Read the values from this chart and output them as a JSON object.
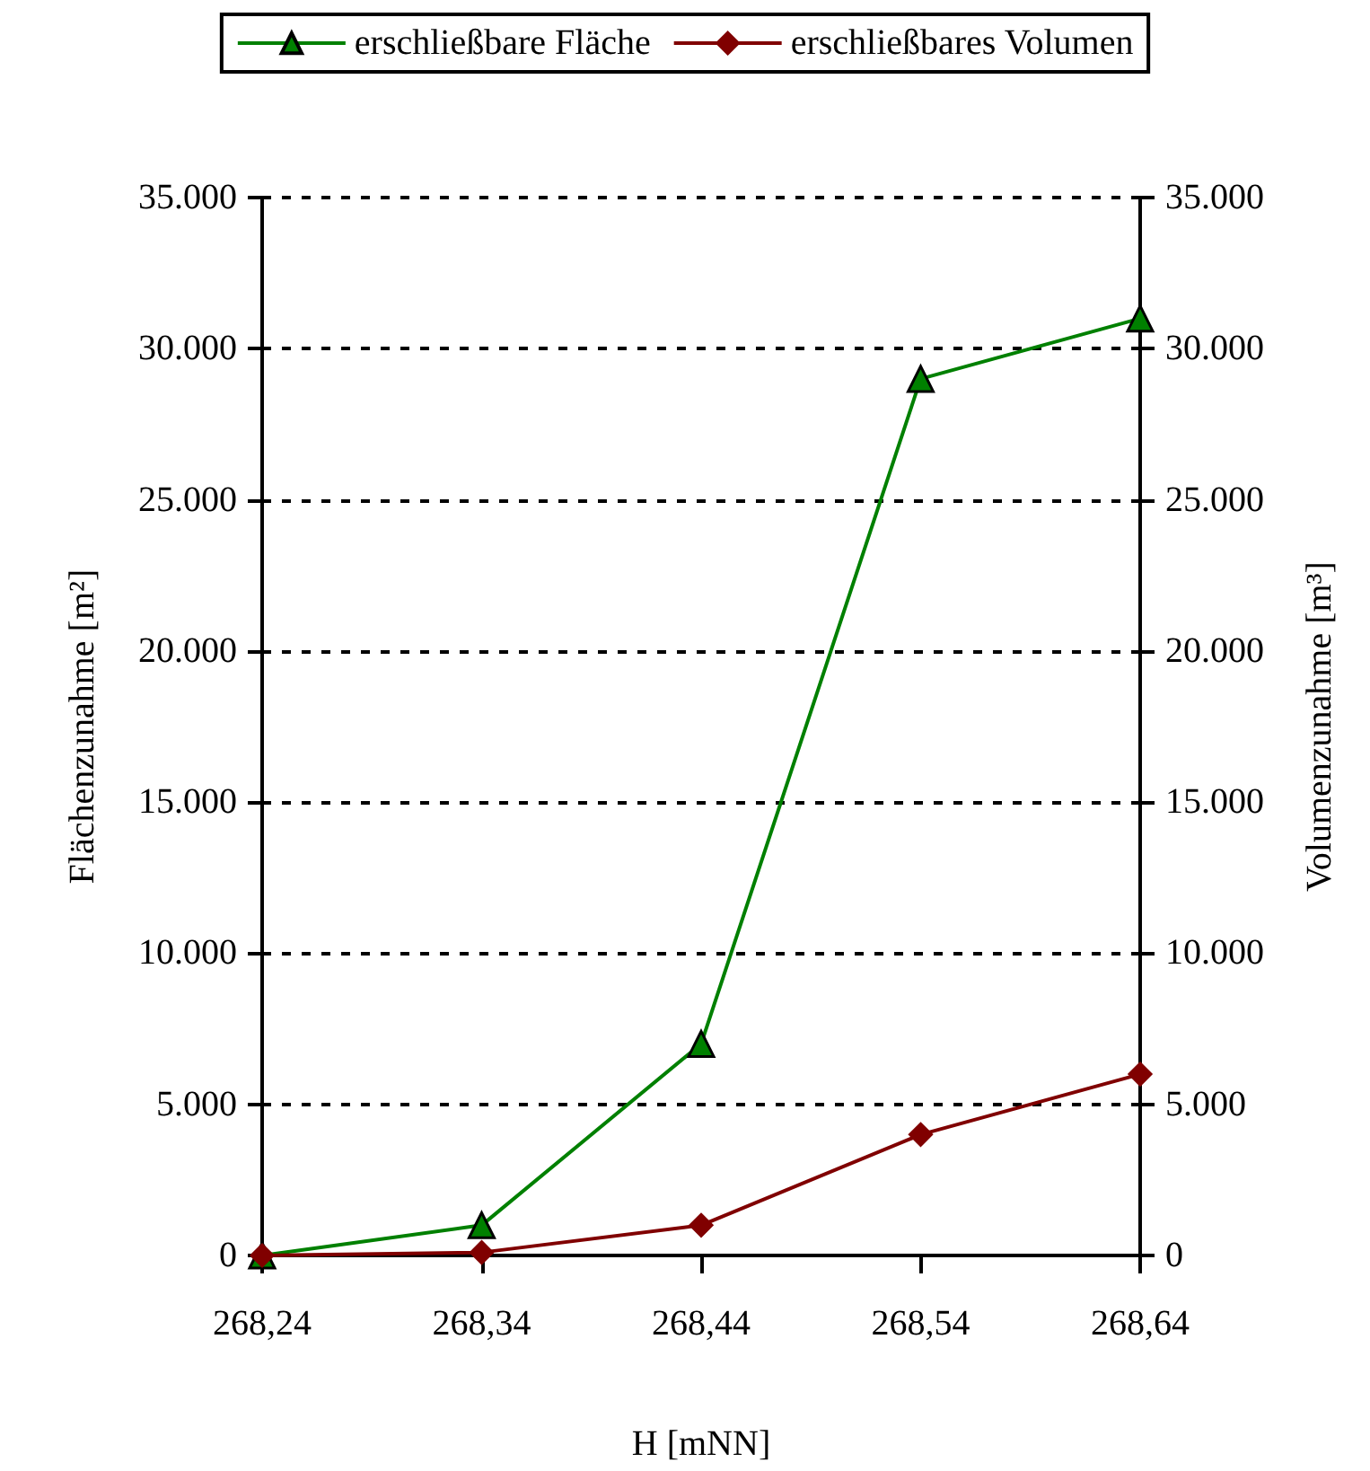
{
  "chart_data": {
    "type": "line",
    "xlabel": "H [mNN]",
    "ylabel": "Flächenzunahme [m²]",
    "y2label": "Volumenzunahme [m³]",
    "categories": [
      "268,24",
      "268,34",
      "268,44",
      "268,54",
      "268,64"
    ],
    "series": [
      {
        "name": "erschließbare Fläche",
        "color": "#008000",
        "marker": "triangle",
        "values": [
          0,
          1000,
          7000,
          29000,
          31000
        ]
      },
      {
        "name": "erschließbares Volumen",
        "color": "#800000",
        "marker": "diamond",
        "axis": "y2",
        "values": [
          0,
          100,
          1000,
          4000,
          6000
        ]
      }
    ],
    "ylim": [
      0,
      35000
    ],
    "yticks": [
      {
        "value": 0,
        "label": "0"
      },
      {
        "value": 5000,
        "label": "5.000"
      },
      {
        "value": 10000,
        "label": "10.000"
      },
      {
        "value": 15000,
        "label": "15.000"
      },
      {
        "value": 20000,
        "label": "20.000"
      },
      {
        "value": 25000,
        "label": "25.000"
      },
      {
        "value": 30000,
        "label": "30.000"
      },
      {
        "value": 35000,
        "label": "35.000"
      }
    ],
    "y2lim": [
      0,
      35000
    ],
    "y2ticks": [
      {
        "value": 0,
        "label": "0"
      },
      {
        "value": 5000,
        "label": "5.000"
      },
      {
        "value": 10000,
        "label": "10.000"
      },
      {
        "value": 15000,
        "label": "15.000"
      },
      {
        "value": 20000,
        "label": "20.000"
      },
      {
        "value": 25000,
        "label": "25.000"
      },
      {
        "value": 30000,
        "label": "30.000"
      },
      {
        "value": 35000,
        "label": "35.000"
      }
    ],
    "grid": "y",
    "legend": "top",
    "line_style": "solid"
  }
}
